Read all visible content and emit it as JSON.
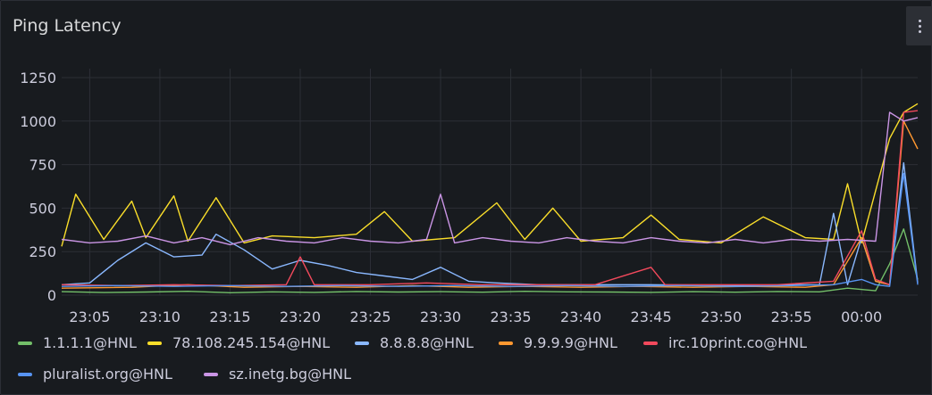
{
  "panel": {
    "title": "Ping Latency"
  },
  "menu": {
    "icon": "kebab-menu-icon"
  },
  "chart_data": {
    "type": "line",
    "x_ticks": [
      "23:05",
      "23:10",
      "23:15",
      "23:20",
      "23:25",
      "23:30",
      "23:35",
      "23:40",
      "23:45",
      "23:50",
      "23:55",
      "00:00"
    ],
    "y_ticks": [
      "0",
      "250",
      "500",
      "750",
      "1000",
      "1250"
    ],
    "ylim": [
      0,
      1250
    ],
    "x_range": [
      "23:03",
      "00:04"
    ],
    "grid": true,
    "legend_position": "bottom",
    "series": [
      {
        "name": "1.1.1.1@HNL",
        "color": "#73bf69",
        "points": [
          [
            "23:03",
            20
          ],
          [
            "23:06",
            15
          ],
          [
            "23:09",
            18
          ],
          [
            "23:12",
            22
          ],
          [
            "23:15",
            14
          ],
          [
            "23:18",
            19
          ],
          [
            "23:21",
            16
          ],
          [
            "23:24",
            21
          ],
          [
            "23:27",
            18
          ],
          [
            "23:30",
            20
          ],
          [
            "23:33",
            17
          ],
          [
            "23:36",
            22
          ],
          [
            "23:39",
            19
          ],
          [
            "23:42",
            18
          ],
          [
            "23:45",
            16
          ],
          [
            "23:48",
            20
          ],
          [
            "23:51",
            17
          ],
          [
            "23:54",
            21
          ],
          [
            "23:57",
            19
          ],
          [
            "23:59",
            40
          ],
          [
            "00:01",
            25
          ],
          [
            "00:02",
            180
          ],
          [
            "00:03",
            380
          ],
          [
            "00:04",
            90
          ]
        ]
      },
      {
        "name": "78.108.245.154@HNL",
        "color": "#fade2a",
        "points": [
          [
            "23:03",
            280
          ],
          [
            "23:04",
            580
          ],
          [
            "23:06",
            320
          ],
          [
            "23:08",
            540
          ],
          [
            "23:09",
            330
          ],
          [
            "23:11",
            570
          ],
          [
            "23:12",
            310
          ],
          [
            "23:14",
            560
          ],
          [
            "23:16",
            300
          ],
          [
            "23:18",
            340
          ],
          [
            "23:21",
            330
          ],
          [
            "23:24",
            350
          ],
          [
            "23:26",
            480
          ],
          [
            "23:28",
            310
          ],
          [
            "23:31",
            330
          ],
          [
            "23:34",
            530
          ],
          [
            "23:36",
            320
          ],
          [
            "23:38",
            500
          ],
          [
            "23:40",
            310
          ],
          [
            "23:43",
            330
          ],
          [
            "23:45",
            460
          ],
          [
            "23:47",
            320
          ],
          [
            "23:50",
            300
          ],
          [
            "23:53",
            450
          ],
          [
            "23:56",
            330
          ],
          [
            "23:58",
            320
          ],
          [
            "23:59",
            640
          ],
          [
            "00:00",
            300
          ],
          [
            "00:01",
            600
          ],
          [
            "00:02",
            900
          ],
          [
            "00:03",
            1050
          ],
          [
            "00:04",
            1100
          ]
        ]
      },
      {
        "name": "8.8.8.8@HNL",
        "color": "#8ab8ff",
        "points": [
          [
            "23:03",
            60
          ],
          [
            "23:05",
            70
          ],
          [
            "23:07",
            200
          ],
          [
            "23:09",
            300
          ],
          [
            "23:11",
            220
          ],
          [
            "23:13",
            230
          ],
          [
            "23:14",
            350
          ],
          [
            "23:16",
            260
          ],
          [
            "23:18",
            150
          ],
          [
            "23:20",
            200
          ],
          [
            "23:22",
            170
          ],
          [
            "23:24",
            130
          ],
          [
            "23:26",
            110
          ],
          [
            "23:28",
            90
          ],
          [
            "23:30",
            160
          ],
          [
            "23:32",
            80
          ],
          [
            "23:34",
            70
          ],
          [
            "23:37",
            60
          ],
          [
            "23:40",
            60
          ],
          [
            "23:45",
            60
          ],
          [
            "23:50",
            55
          ],
          [
            "23:55",
            60
          ],
          [
            "23:57",
            60
          ],
          [
            "23:58",
            470
          ],
          [
            "23:59",
            60
          ],
          [
            "00:00",
            330
          ],
          [
            "00:01",
            80
          ],
          [
            "00:02",
            60
          ],
          [
            "00:03",
            760
          ],
          [
            "00:04",
            70
          ]
        ]
      },
      {
        "name": "9.9.9.9@HNL",
        "color": "#ff9830",
        "points": [
          [
            "23:03",
            40
          ],
          [
            "23:08",
            45
          ],
          [
            "23:12",
            60
          ],
          [
            "23:16",
            45
          ],
          [
            "23:20",
            50
          ],
          [
            "23:24",
            45
          ],
          [
            "23:28",
            55
          ],
          [
            "23:32",
            45
          ],
          [
            "23:36",
            50
          ],
          [
            "23:40",
            45
          ],
          [
            "23:44",
            50
          ],
          [
            "23:48",
            45
          ],
          [
            "23:52",
            50
          ],
          [
            "23:56",
            45
          ],
          [
            "23:58",
            60
          ],
          [
            "00:00",
            330
          ],
          [
            "00:01",
            80
          ],
          [
            "00:02",
            60
          ],
          [
            "00:03",
            1000
          ],
          [
            "00:04",
            840
          ]
        ]
      },
      {
        "name": "irc.10print.co@HNL",
        "color": "#f2495c",
        "points": [
          [
            "23:03",
            60
          ],
          [
            "23:07",
            55
          ],
          [
            "23:11",
            60
          ],
          [
            "23:15",
            55
          ],
          [
            "23:19",
            60
          ],
          [
            "23:20",
            220
          ],
          [
            "23:21",
            60
          ],
          [
            "23:25",
            60
          ],
          [
            "23:29",
            70
          ],
          [
            "23:33",
            60
          ],
          [
            "23:37",
            60
          ],
          [
            "23:41",
            60
          ],
          [
            "23:45",
            160
          ],
          [
            "23:46",
            60
          ],
          [
            "23:50",
            60
          ],
          [
            "23:54",
            60
          ],
          [
            "23:58",
            80
          ],
          [
            "00:00",
            370
          ],
          [
            "00:01",
            90
          ],
          [
            "00:02",
            60
          ],
          [
            "00:03",
            1050
          ],
          [
            "00:04",
            1060
          ]
        ]
      },
      {
        "name": "pluralist.org@HNL",
        "color": "#5794f2",
        "points": [
          [
            "23:03",
            50
          ],
          [
            "23:07",
            55
          ],
          [
            "23:11",
            50
          ],
          [
            "23:15",
            55
          ],
          [
            "23:19",
            50
          ],
          [
            "23:23",
            55
          ],
          [
            "23:27",
            50
          ],
          [
            "23:31",
            55
          ],
          [
            "23:35",
            50
          ],
          [
            "23:39",
            55
          ],
          [
            "23:43",
            50
          ],
          [
            "23:47",
            55
          ],
          [
            "23:51",
            50
          ],
          [
            "23:55",
            55
          ],
          [
            "23:58",
            60
          ],
          [
            "00:00",
            90
          ],
          [
            "00:01",
            60
          ],
          [
            "00:02",
            50
          ],
          [
            "00:03",
            700
          ],
          [
            "00:04",
            60
          ]
        ]
      },
      {
        "name": "sz.inetg.bg@HNL",
        "color": "#ca95e5",
        "points": [
          [
            "23:03",
            320
          ],
          [
            "23:05",
            300
          ],
          [
            "23:07",
            310
          ],
          [
            "23:09",
            340
          ],
          [
            "23:11",
            300
          ],
          [
            "23:13",
            330
          ],
          [
            "23:15",
            290
          ],
          [
            "23:17",
            330
          ],
          [
            "23:19",
            310
          ],
          [
            "23:21",
            300
          ],
          [
            "23:23",
            330
          ],
          [
            "23:25",
            310
          ],
          [
            "23:27",
            300
          ],
          [
            "23:29",
            320
          ],
          [
            "23:30",
            580
          ],
          [
            "23:31",
            300
          ],
          [
            "23:33",
            330
          ],
          [
            "23:35",
            310
          ],
          [
            "23:37",
            300
          ],
          [
            "23:39",
            330
          ],
          [
            "23:41",
            310
          ],
          [
            "23:43",
            300
          ],
          [
            "23:45",
            330
          ],
          [
            "23:47",
            310
          ],
          [
            "23:49",
            300
          ],
          [
            "23:51",
            320
          ],
          [
            "23:53",
            300
          ],
          [
            "23:55",
            320
          ],
          [
            "23:57",
            310
          ],
          [
            "23:59",
            320
          ],
          [
            "00:01",
            310
          ],
          [
            "00:02",
            1050
          ],
          [
            "00:03",
            1000
          ],
          [
            "00:04",
            1020
          ]
        ]
      }
    ]
  }
}
